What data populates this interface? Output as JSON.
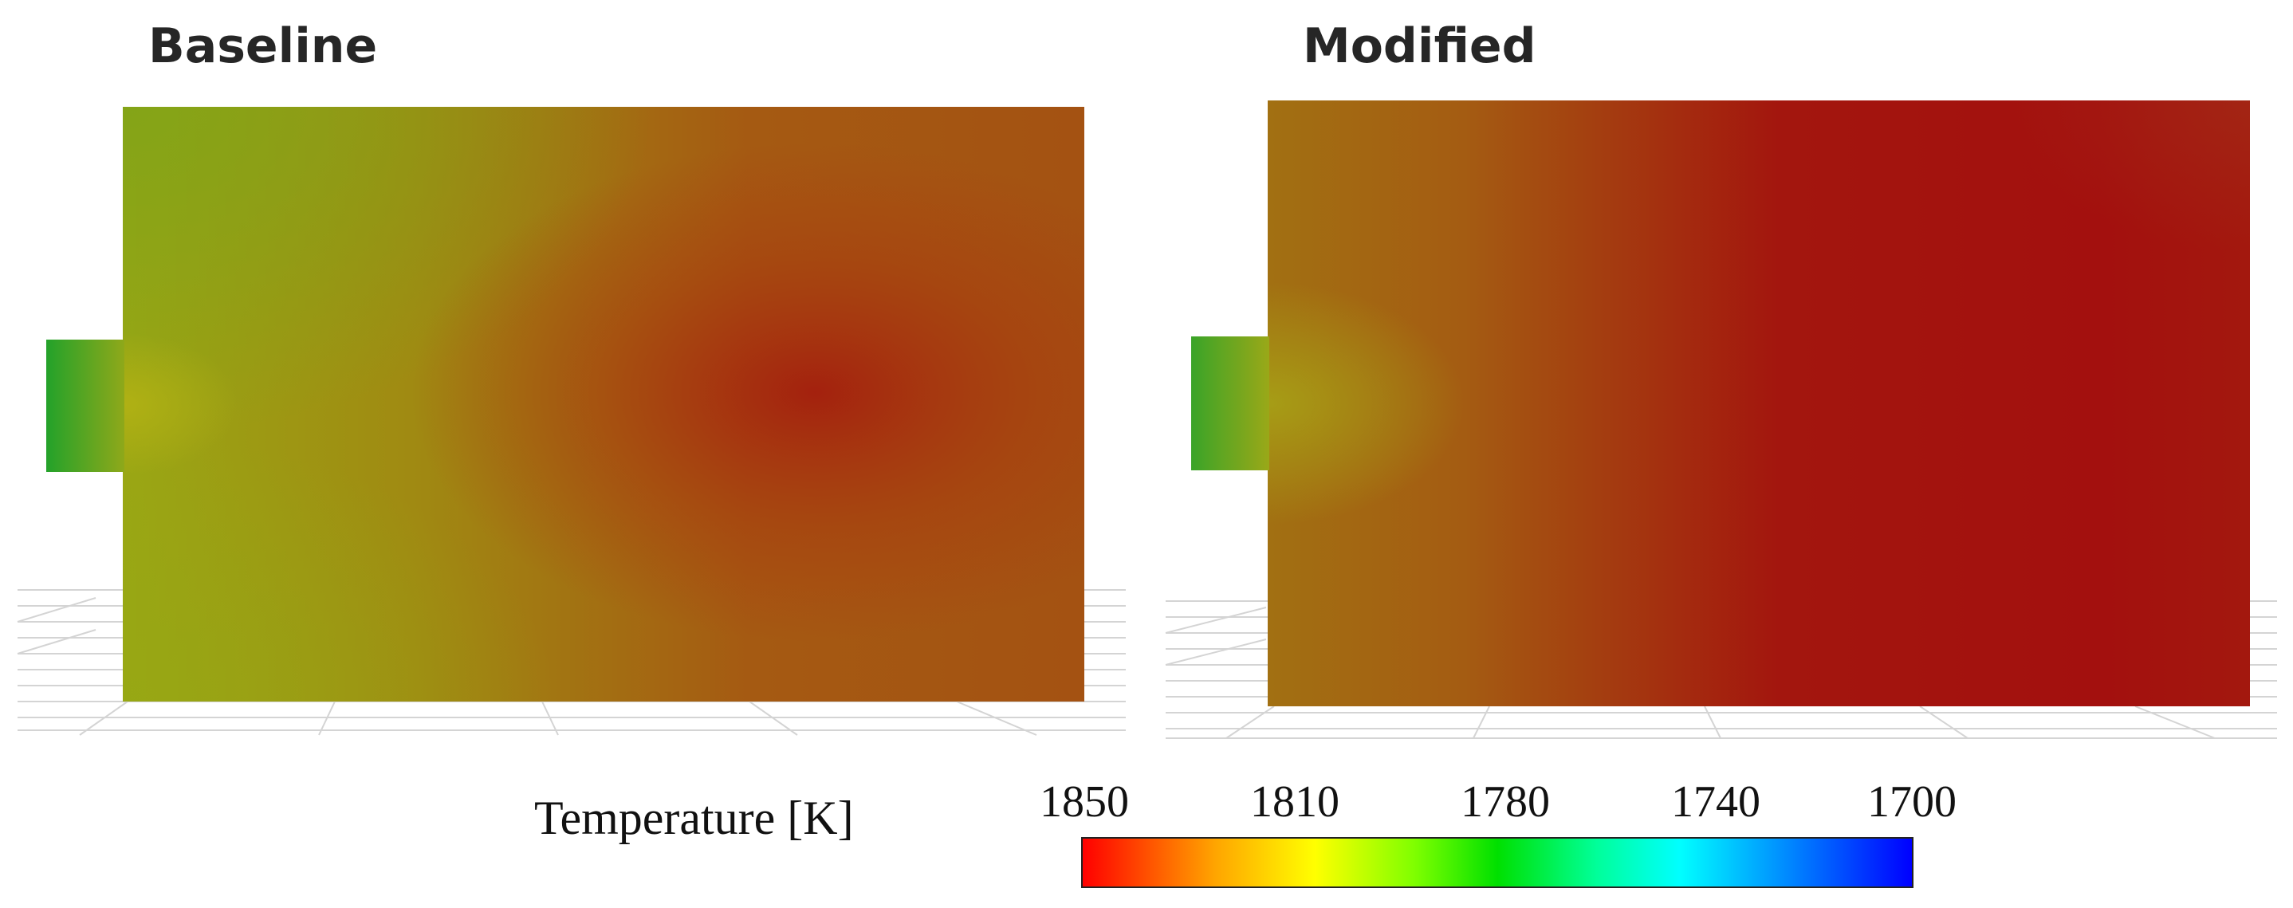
{
  "panels": {
    "left": {
      "title": "Baseline"
    },
    "right": {
      "title": "Modified"
    }
  },
  "colorbar": {
    "quantity": "Temperature [K]",
    "ticks": [
      "1850",
      "1810",
      "1780",
      "1740",
      "1700"
    ],
    "colors": [
      "#ff0000",
      "#ffa500",
      "#ffff00",
      "#7fff00",
      "#00e000",
      "#00ff9a",
      "#00ffff",
      "#0080ff",
      "#0000ff"
    ]
  }
}
